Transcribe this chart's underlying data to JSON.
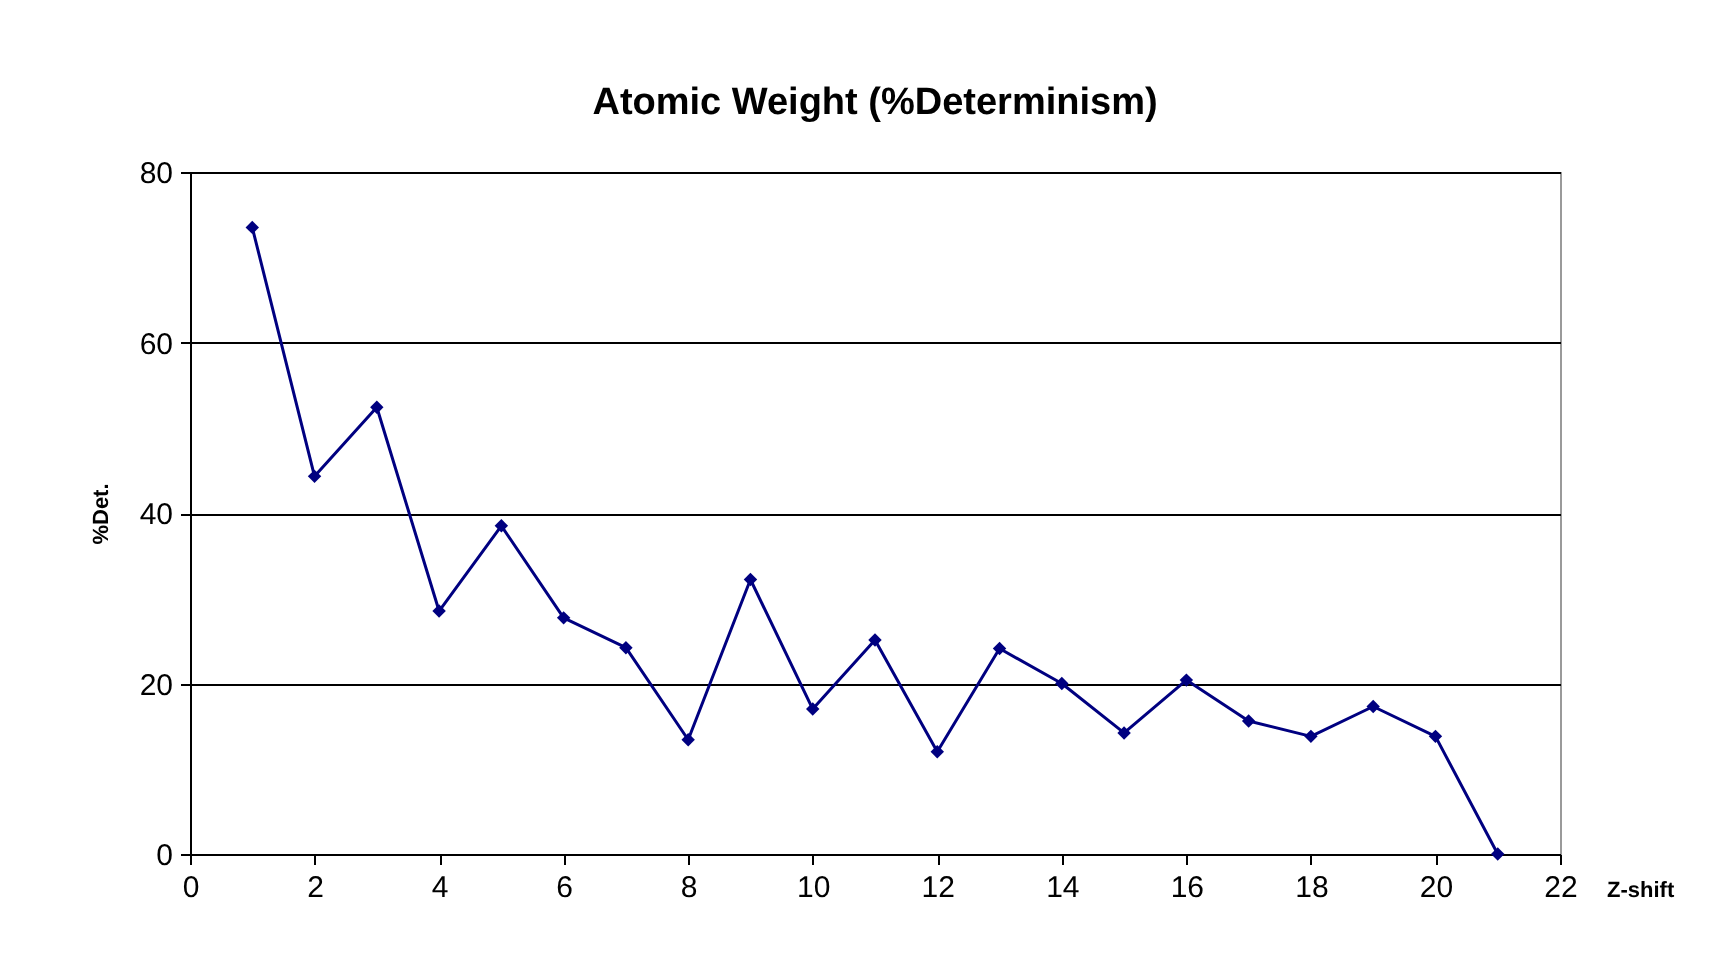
{
  "chart_data": {
    "type": "line",
    "title": "Atomic Weight (%Determinism)",
    "xlabel": "Z-shift",
    "ylabel": "%Det.",
    "x": [
      1,
      2,
      3,
      4,
      5,
      6,
      7,
      8,
      9,
      10,
      11,
      12,
      13,
      14,
      15,
      16,
      17,
      18,
      19,
      20,
      21
    ],
    "series": [
      {
        "color": "#000080",
        "values": [
          73.5,
          44.3,
          52.4,
          28.5,
          38.5,
          27.7,
          24.2,
          13.4,
          32.2,
          17.0,
          25.1,
          12.0,
          24.1,
          20.0,
          14.2,
          20.4,
          15.6,
          13.8,
          17.3,
          13.8,
          0
        ]
      }
    ],
    "xlim": [
      0,
      22
    ],
    "xticks": [
      0,
      2,
      4,
      6,
      8,
      10,
      12,
      14,
      16,
      18,
      20,
      22
    ],
    "ylim": [
      0,
      80
    ],
    "yticks": [
      0,
      20,
      40,
      60,
      80
    ],
    "grid": "y",
    "marker": "diamond",
    "line_style": "solid"
  }
}
